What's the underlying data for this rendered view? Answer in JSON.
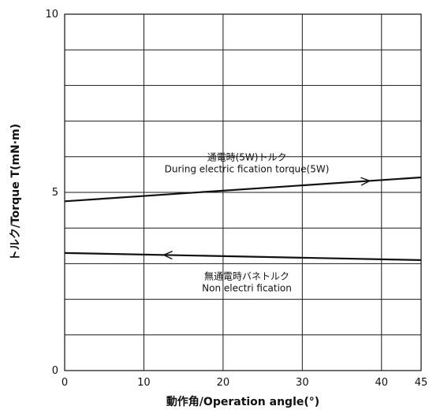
{
  "chart_data": {
    "type": "line",
    "xlabel": "動作角/Operation angle(°)",
    "ylabel": "トルク/Torque T(mN·m)",
    "xlim": [
      0,
      45
    ],
    "ylim": [
      0,
      10
    ],
    "x_ticks": [
      0,
      10,
      20,
      30,
      40,
      45
    ],
    "y_ticks": [
      0,
      5,
      10
    ],
    "x_gridlines": [
      0,
      10,
      20,
      30,
      40,
      45
    ],
    "y_gridlines": [
      0,
      1,
      2,
      3,
      4,
      5,
      6,
      7,
      8,
      9,
      10
    ],
    "grid": true,
    "series": [
      {
        "x": [
          0,
          45
        ],
        "y": [
          4.75,
          5.42
        ],
        "arrow_at_x": 38.5,
        "arrow_direction": "right"
      },
      {
        "x": [
          0,
          45
        ],
        "y": [
          3.3,
          3.1
        ],
        "arrow_at_x": 12.5,
        "arrow_direction": "left"
      }
    ],
    "annotations": [
      {
        "line1": "通電時(5W)トルク",
        "line2": "During electric fication torque(5W)",
        "x": 23,
        "y": 5.9
      },
      {
        "line1": "無通電時バネトルク",
        "line2": "Non electri fication",
        "x": 23,
        "y": 2.55
      }
    ]
  }
}
